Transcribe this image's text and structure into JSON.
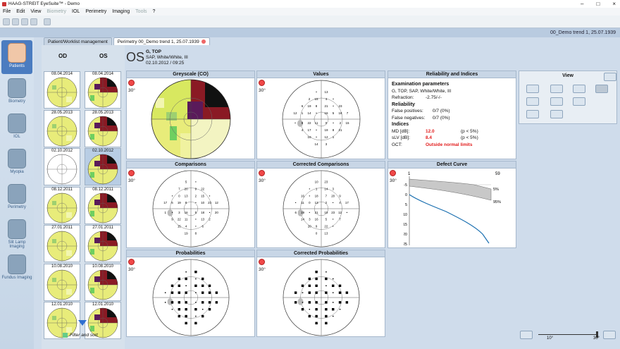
{
  "window": {
    "title": "HAAG-STREIT EyeSuite™  -  Demo"
  },
  "menu": [
    "File",
    "Edit",
    "View",
    "Biometry",
    "IOL",
    "Perimetry",
    "Imaging",
    "Tools",
    "?"
  ],
  "menu_disabled": [
    "Biometry",
    "Tools"
  ],
  "topinfo": "00_Demo trend 1, 25.07.1939",
  "nav": [
    {
      "label": "Patients",
      "icon": "patient-icon"
    },
    {
      "label": "Biometry",
      "icon": "biometer-icon"
    },
    {
      "label": "IOL",
      "icon": "iol-icon"
    },
    {
      "label": "Myopia",
      "icon": "myopia-icon"
    },
    {
      "label": "Perimetry",
      "icon": "perimeter-icon"
    },
    {
      "label": "Slit Lamp Imaging",
      "icon": "slit-lamp-icon"
    },
    {
      "label": "Fundus Imaging",
      "icon": "fundus-camera-icon"
    }
  ],
  "tabs": [
    {
      "label": "Patient/Worklist management"
    },
    {
      "label": "Perimetry 00_Demo trend 1, 25.07.1939"
    }
  ],
  "columns": {
    "od": "OD",
    "os": "OS"
  },
  "dates": [
    "08.04.2014",
    "28.05.2013",
    "02.10.2012",
    "08.12.2011",
    "27.01.2011",
    "10.08.2010",
    "12.01.2010"
  ],
  "filter_label": "Filter and sort",
  "exam": {
    "eye": "OS",
    "program": "G, TOP",
    "strategy": "SAP, White/White, III",
    "datetime": "02.10.2012 / 09:25"
  },
  "panels": {
    "greyscale": "Greyscale (CO)",
    "values": "Values",
    "comparisons": "Comparisons",
    "corrected_comparisons": "Corrected Comparisons",
    "probabilities": "Probabilities",
    "corrected_probabilities": "Corrected Probabilities",
    "reliability": "Reliability and Indices",
    "defect": "Defect Curve",
    "view": "View"
  },
  "field_angle": "30°",
  "reliability": {
    "exam_params_title": "Examination parameters",
    "exam_params": "G, TOP, SAP, White/White, III",
    "refraction_label": "Refraction:",
    "refraction": "-2.75/-/-",
    "reliability_title": "Reliability",
    "fp_label": "False positives:",
    "fp": "0/7 (0%)",
    "fn_label": "False negatives:",
    "fn": "0/7 (0%)",
    "indices_title": "Indices",
    "md_label": "MD [dB]:",
    "md": "12.0",
    "md_p": "(p <  5%)",
    "slv_label": "sLV [dB]:",
    "slv": "8.4",
    "slv_p": "(p <  5%)",
    "gct_label": "GCT:",
    "gct": "Outside normal limits"
  },
  "defect_curve": {
    "top_left": "1",
    "top_right": "59",
    "yticks": [
      "-5",
      "0",
      "5",
      "10",
      "15",
      "20",
      "25"
    ],
    "label_5": "5%",
    "label_95": "95%"
  },
  "slider": {
    "min_label": "10°",
    "max_label": "30°"
  },
  "colors": {
    "accent": "#4b7cc0",
    "red": "#e21b1b",
    "curve": "#1a6fb0"
  }
}
